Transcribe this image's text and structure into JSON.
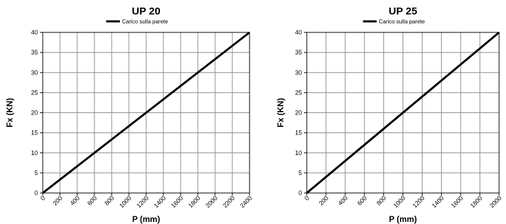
{
  "chart_data": [
    {
      "type": "line",
      "title": "UP 20",
      "xlabel": "P (mm)",
      "ylabel": "Fx (KN)",
      "xlim": [
        0,
        2400
      ],
      "ylim": [
        0,
        40
      ],
      "xticks": [
        0,
        200,
        400,
        600,
        800,
        1000,
        1200,
        1400,
        1600,
        1800,
        2000,
        2200,
        2400
      ],
      "yticks": [
        0,
        5,
        10,
        15,
        20,
        25,
        30,
        35,
        40
      ],
      "grid": true,
      "legend_position": "top-center",
      "series": [
        {
          "name": "Carico sulla parete",
          "x": [
            0,
            2400
          ],
          "y": [
            0,
            40
          ],
          "color": "#000000"
        }
      ]
    },
    {
      "type": "line",
      "title": "UP 25",
      "xlabel": "P (mm)",
      "ylabel": "Fx (KN)",
      "xlim": [
        0,
        2000
      ],
      "ylim": [
        0,
        40
      ],
      "xticks": [
        0,
        200,
        400,
        600,
        800,
        1000,
        1200,
        1400,
        1600,
        1800,
        2000
      ],
      "yticks": [
        0,
        5,
        10,
        15,
        20,
        25,
        30,
        35,
        40
      ],
      "grid": true,
      "legend_position": "top-center",
      "series": [
        {
          "name": "Carico sulla parete",
          "x": [
            0,
            2000
          ],
          "y": [
            0,
            40
          ],
          "color": "#000000"
        }
      ]
    }
  ]
}
